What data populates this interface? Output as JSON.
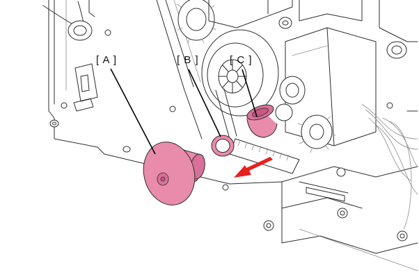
{
  "figure": {
    "callouts": [
      {
        "id": "A",
        "label": "[ A ]"
      },
      {
        "id": "B",
        "label": "[ B ]"
      },
      {
        "id": "C",
        "label": "[ C ]"
      }
    ],
    "colors": {
      "highlight_part": "#e98bab",
      "highlight_part_dark": "#c9587f",
      "direction_arrow": "#e8201e",
      "line_art": "#2b2b2b"
    },
    "icons": {
      "removal_direction": "red-arrow-icon"
    }
  }
}
